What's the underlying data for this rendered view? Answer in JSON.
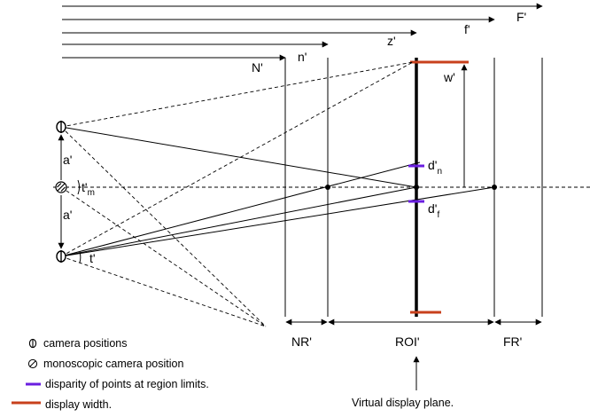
{
  "diagram": {
    "distance_labels": {
      "F_cap": "F'",
      "f_low": "f'",
      "z": "z'",
      "n_low": "n'",
      "N_cap": "N'"
    },
    "width_label": "w'",
    "separation_labels": {
      "upper": "a'",
      "lower": "a'"
    },
    "angle_labels": {
      "tm_main": "t'",
      "tm_sub": "m",
      "t": "t'"
    },
    "disparity_labels": {
      "near_main": "d'",
      "near_sub": "n",
      "far_main": "d'",
      "far_sub": "f"
    },
    "region_labels": {
      "nr": "NR'",
      "roi": "ROI'",
      "fr": "FR'"
    },
    "colors": {
      "display_width": "#c8401c",
      "disparity": "#6a1ee0",
      "lines": "#000000"
    },
    "icons": {
      "camera": "camera-position-icon",
      "mono_camera": "monoscopic-camera-icon"
    }
  },
  "legend": {
    "items": [
      {
        "icon": "camera-position-icon",
        "text": "camera positions"
      },
      {
        "icon": "monoscopic-camera-icon",
        "text": "monoscopic camera position"
      },
      {
        "icon": "disparity-swatch",
        "text": "disparity of points at region limits."
      },
      {
        "icon": "display-width-swatch",
        "text": "display width."
      }
    ]
  },
  "annotation": {
    "virtual_display_plane": "Virtual display plane."
  }
}
